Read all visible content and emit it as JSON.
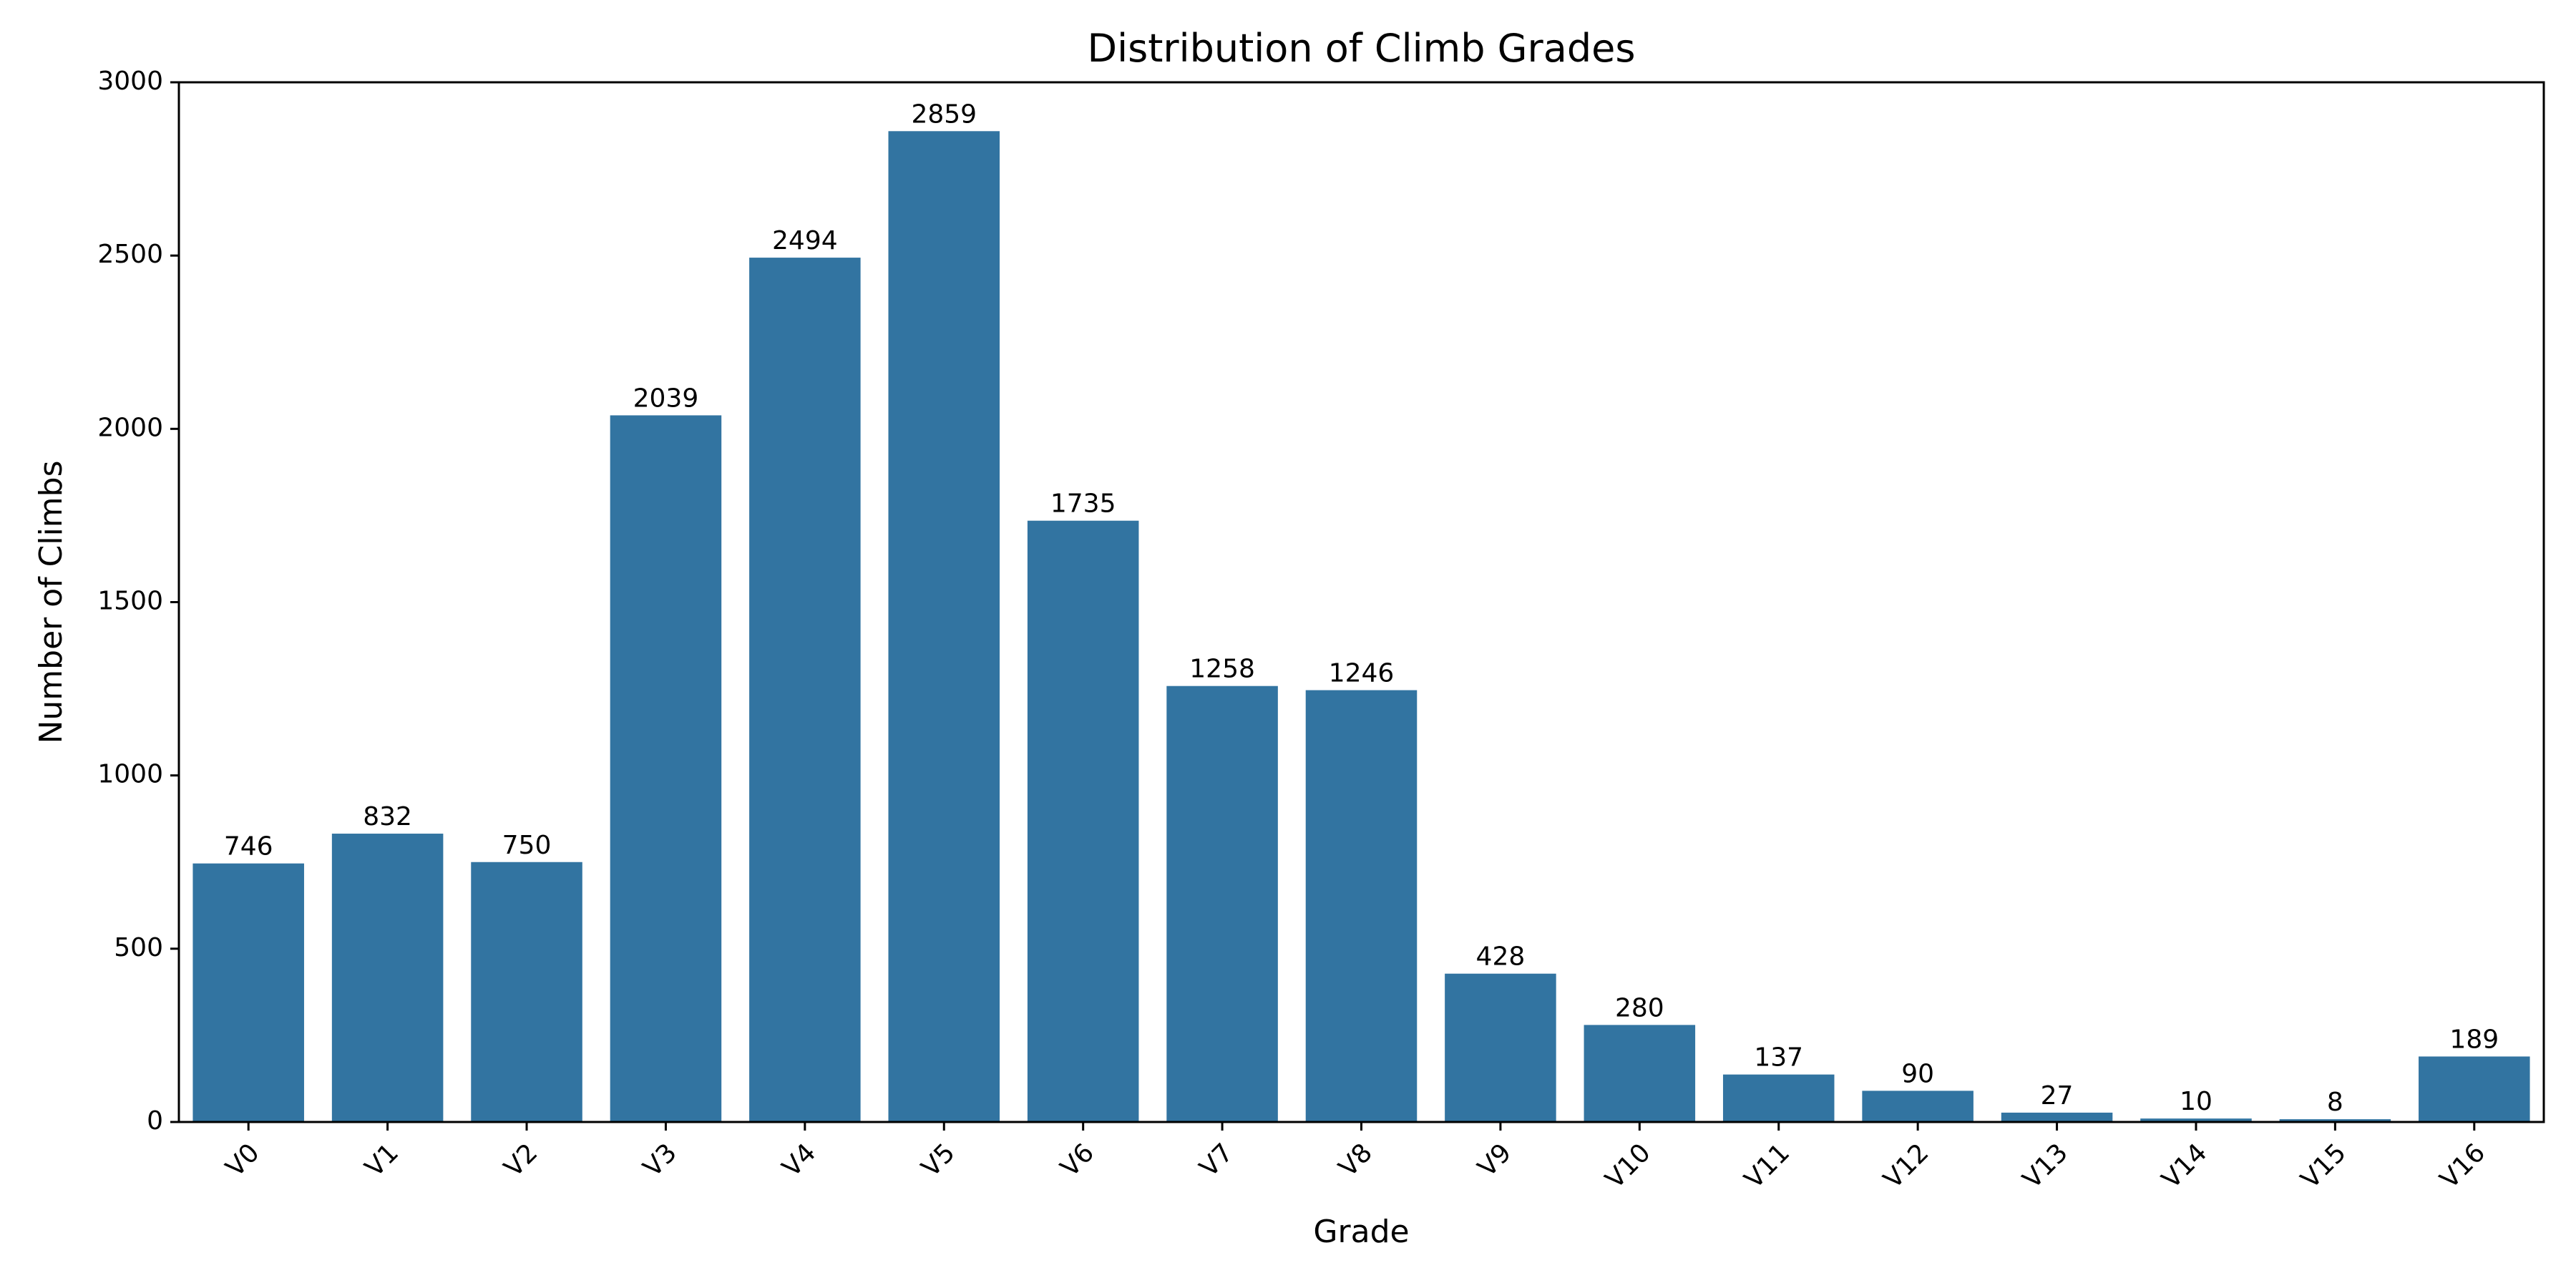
{
  "chart_data": {
    "type": "bar",
    "title": "Distribution of Climb Grades",
    "xlabel": "Grade",
    "ylabel": "Number of Climbs",
    "categories": [
      "V0",
      "V1",
      "V2",
      "V3",
      "V4",
      "V5",
      "V6",
      "V7",
      "V8",
      "V9",
      "V10",
      "V11",
      "V12",
      "V13",
      "V14",
      "V15",
      "V16"
    ],
    "values": [
      746,
      832,
      750,
      2039,
      2494,
      2859,
      1735,
      1258,
      1246,
      428,
      280,
      137,
      90,
      27,
      10,
      8,
      189
    ],
    "data_labels": [
      "746",
      "832",
      "750",
      "2039",
      "2494",
      "2859",
      "1735",
      "1258",
      "1246",
      "428",
      "280",
      "137",
      "90",
      "27",
      "10",
      "8",
      "189"
    ],
    "ylim": [
      0,
      3000
    ],
    "yticks": [
      "0",
      "500",
      "1000",
      "1500",
      "2000",
      "2500",
      "3000"
    ],
    "bar_color": "#3274a1",
    "grid": false,
    "legend": "none"
  }
}
